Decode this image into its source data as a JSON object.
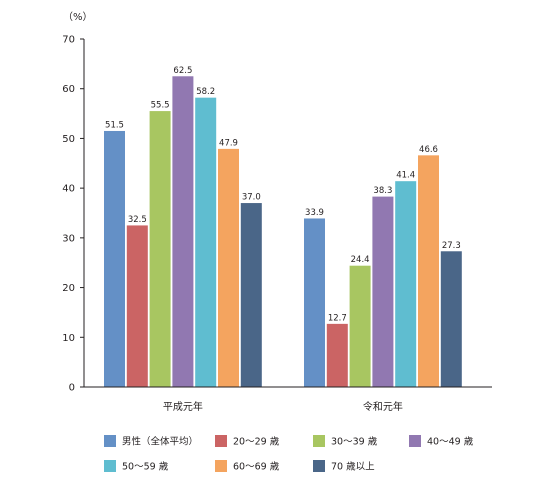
{
  "chart_data": {
    "type": "bar",
    "unit_label": "（%）",
    "categories": [
      "平成元年",
      "令和元年"
    ],
    "series": [
      {
        "name": "男性（全体平均）",
        "color": "#6490c6",
        "values": [
          51.5,
          33.9
        ]
      },
      {
        "name": "20〜29 歳",
        "color": "#cb6464",
        "values": [
          32.5,
          12.7
        ]
      },
      {
        "name": "30〜39 歳",
        "color": "#a8c661",
        "values": [
          55.5,
          24.4
        ]
      },
      {
        "name": "40〜49 歳",
        "color": "#9178b1",
        "values": [
          62.5,
          38.3
        ]
      },
      {
        "name": "50〜59 歳",
        "color": "#5fbdd0",
        "values": [
          58.2,
          41.4
        ]
      },
      {
        "name": "60〜69 歳",
        "color": "#f4a45f",
        "values": [
          47.9,
          46.6
        ]
      },
      {
        "name": "70 歳以上",
        "color": "#4a6688",
        "values": [
          37.0,
          27.3
        ]
      }
    ],
    "data_labels": [
      [
        "51.5",
        "33.9"
      ],
      [
        "32.5",
        "12.7"
      ],
      [
        "55.5",
        "24.4"
      ],
      [
        "62.5",
        "38.3"
      ],
      [
        "58.2",
        "41.4"
      ],
      [
        "47.9",
        "46.6"
      ],
      [
        "37.0",
        "27.3"
      ]
    ],
    "yticks": [
      "0",
      "10",
      "20",
      "30",
      "40",
      "50",
      "60",
      "70"
    ],
    "ylim": [
      0,
      70
    ],
    "grid": false,
    "legend_position": "bottom"
  }
}
